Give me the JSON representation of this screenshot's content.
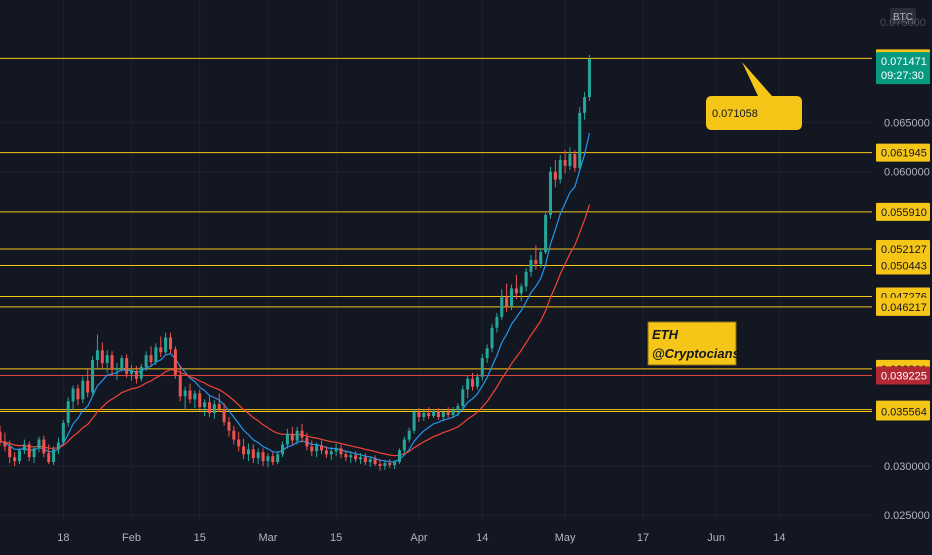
{
  "colors": {
    "background": "#131722",
    "grid": "#1e222d",
    "axis_text": "#b2b5be",
    "up": "#26a69a",
    "down": "#ef5350",
    "level_line": "#f5c518",
    "level_line_red": "#e0443f",
    "ema_fast": "#2196f3",
    "ema_slow": "#f44336",
    "price_tag_bg": "#089981",
    "red_tag_bg": "#b22833",
    "callout_bg": "#f5c518",
    "callout_text": "#131722"
  },
  "chart_data": {
    "type": "candlestick",
    "symbol": "ETH",
    "quote_currency": "BTC",
    "interval": "1D",
    "y_range": [
      0.0245,
      0.0775
    ],
    "x_ticks": [
      {
        "label": "18",
        "day": 18
      },
      {
        "label": "Feb",
        "day": 32
      },
      {
        "label": "15",
        "day": 46
      },
      {
        "label": "Mar",
        "day": 60
      },
      {
        "label": "15",
        "day": 74
      },
      {
        "label": "Apr",
        "day": 91
      },
      {
        "label": "14",
        "day": 104
      },
      {
        "label": "May",
        "day": 121
      },
      {
        "label": "17",
        "day": 137
      },
      {
        "label": "Jun",
        "day": 152
      },
      {
        "label": "14",
        "day": 165
      }
    ],
    "y_ticks": [
      0.065,
      0.06,
      0.03,
      0.025
    ],
    "x_domain": [
      5,
      184
    ],
    "candles_start_day": 5,
    "candles": [
      [
        0.0335,
        0.0341,
        0.0321,
        0.0325
      ],
      [
        0.0325,
        0.0334,
        0.0315,
        0.032
      ],
      [
        0.032,
        0.0326,
        0.0303,
        0.0309
      ],
      [
        0.0309,
        0.0314,
        0.03,
        0.0305
      ],
      [
        0.0305,
        0.0318,
        0.0302,
        0.0316
      ],
      [
        0.0316,
        0.0327,
        0.0312,
        0.0322
      ],
      [
        0.0322,
        0.0325,
        0.0305,
        0.0309
      ],
      [
        0.0309,
        0.032,
        0.0303,
        0.0318
      ],
      [
        0.0318,
        0.033,
        0.0314,
        0.0327
      ],
      [
        0.0327,
        0.0331,
        0.0309,
        0.0313
      ],
      [
        0.0313,
        0.0322,
        0.0302,
        0.0304
      ],
      [
        0.0304,
        0.032,
        0.0301,
        0.0317
      ],
      [
        0.0317,
        0.0329,
        0.0312,
        0.0324
      ],
      [
        0.0324,
        0.0347,
        0.0321,
        0.0344
      ],
      [
        0.0344,
        0.037,
        0.034,
        0.0366
      ],
      [
        0.0366,
        0.0382,
        0.0357,
        0.0379
      ],
      [
        0.0379,
        0.0383,
        0.0362,
        0.0368
      ],
      [
        0.0368,
        0.0391,
        0.0364,
        0.0387
      ],
      [
        0.0387,
        0.04,
        0.037,
        0.0375
      ],
      [
        0.0375,
        0.0412,
        0.0371,
        0.0408
      ],
      [
        0.0408,
        0.0434,
        0.04,
        0.0418
      ],
      [
        0.0418,
        0.0426,
        0.04,
        0.0405
      ],
      [
        0.0405,
        0.0418,
        0.0395,
        0.0413
      ],
      [
        0.0413,
        0.0417,
        0.0392,
        0.0398
      ],
      [
        0.0398,
        0.0405,
        0.0388,
        0.04
      ],
      [
        0.04,
        0.0413,
        0.0396,
        0.041
      ],
      [
        0.041,
        0.0414,
        0.039,
        0.0394
      ],
      [
        0.0394,
        0.0403,
        0.0387,
        0.0397
      ],
      [
        0.0397,
        0.0402,
        0.0384,
        0.0389
      ],
      [
        0.0389,
        0.0404,
        0.0386,
        0.0401
      ],
      [
        0.0401,
        0.0417,
        0.0397,
        0.0413
      ],
      [
        0.0413,
        0.0422,
        0.0402,
        0.0406
      ],
      [
        0.0406,
        0.0425,
        0.0403,
        0.0421
      ],
      [
        0.0421,
        0.0432,
        0.0411,
        0.0416
      ],
      [
        0.0416,
        0.0436,
        0.0414,
        0.0431
      ],
      [
        0.0431,
        0.0436,
        0.0415,
        0.0419
      ],
      [
        0.0419,
        0.0422,
        0.0389,
        0.0393
      ],
      [
        0.0393,
        0.0403,
        0.0366,
        0.0371
      ],
      [
        0.0371,
        0.0381,
        0.0357,
        0.0377
      ],
      [
        0.0377,
        0.0384,
        0.0364,
        0.0368
      ],
      [
        0.0368,
        0.0377,
        0.0359,
        0.0374
      ],
      [
        0.0374,
        0.0378,
        0.0356,
        0.036
      ],
      [
        0.036,
        0.0368,
        0.0351,
        0.0365
      ],
      [
        0.0365,
        0.0371,
        0.035,
        0.0354
      ],
      [
        0.0354,
        0.0367,
        0.0348,
        0.0363
      ],
      [
        0.0363,
        0.0374,
        0.0355,
        0.0358
      ],
      [
        0.0358,
        0.0364,
        0.0341,
        0.0345
      ],
      [
        0.0345,
        0.035,
        0.033,
        0.0336
      ],
      [
        0.0336,
        0.0341,
        0.0322,
        0.0327
      ],
      [
        0.0327,
        0.0335,
        0.0315,
        0.032
      ],
      [
        0.032,
        0.0328,
        0.0307,
        0.0312
      ],
      [
        0.0312,
        0.0323,
        0.0305,
        0.0317
      ],
      [
        0.0317,
        0.0322,
        0.0303,
        0.0308
      ],
      [
        0.0308,
        0.0318,
        0.0302,
        0.0314
      ],
      [
        0.0314,
        0.0318,
        0.03,
        0.0305
      ],
      [
        0.0305,
        0.0313,
        0.0299,
        0.031
      ],
      [
        0.031,
        0.0314,
        0.0301,
        0.0304
      ],
      [
        0.0304,
        0.0315,
        0.0302,
        0.0312
      ],
      [
        0.0312,
        0.0325,
        0.0309,
        0.0322
      ],
      [
        0.0322,
        0.0338,
        0.0318,
        0.0333
      ],
      [
        0.0333,
        0.034,
        0.0322,
        0.0326
      ],
      [
        0.0326,
        0.034,
        0.0322,
        0.0336
      ],
      [
        0.0336,
        0.0343,
        0.0324,
        0.0329
      ],
      [
        0.0329,
        0.0334,
        0.0316,
        0.032
      ],
      [
        0.032,
        0.0326,
        0.031,
        0.0315
      ],
      [
        0.0315,
        0.0324,
        0.0309,
        0.0321
      ],
      [
        0.0321,
        0.0326,
        0.0312,
        0.0316
      ],
      [
        0.0316,
        0.032,
        0.0308,
        0.0312
      ],
      [
        0.0312,
        0.0319,
        0.0306,
        0.0315
      ],
      [
        0.0315,
        0.0323,
        0.031,
        0.0318
      ],
      [
        0.0318,
        0.0322,
        0.0308,
        0.0312
      ],
      [
        0.0312,
        0.0316,
        0.0305,
        0.0309
      ],
      [
        0.0309,
        0.0315,
        0.0303,
        0.0311
      ],
      [
        0.0311,
        0.0315,
        0.0304,
        0.0307
      ],
      [
        0.0307,
        0.0313,
        0.0302,
        0.0309
      ],
      [
        0.0309,
        0.0313,
        0.0301,
        0.0304
      ],
      [
        0.0304,
        0.031,
        0.0299,
        0.0307
      ],
      [
        0.0307,
        0.0311,
        0.03,
        0.0302
      ],
      [
        0.0302,
        0.0307,
        0.0295,
        0.03
      ],
      [
        0.03,
        0.0306,
        0.0296,
        0.0303
      ],
      [
        0.0303,
        0.0307,
        0.0298,
        0.0301
      ],
      [
        0.0301,
        0.0306,
        0.0297,
        0.0304
      ],
      [
        0.0304,
        0.0318,
        0.0302,
        0.0316
      ],
      [
        0.0316,
        0.033,
        0.0313,
        0.0327
      ],
      [
        0.0327,
        0.0339,
        0.0324,
        0.0336
      ],
      [
        0.0336,
        0.0358,
        0.0333,
        0.0355
      ],
      [
        0.0355,
        0.0359,
        0.0345,
        0.035
      ],
      [
        0.035,
        0.0357,
        0.0346,
        0.0354
      ],
      [
        0.0354,
        0.036,
        0.0348,
        0.0351
      ],
      [
        0.0351,
        0.0358,
        0.0349,
        0.0356
      ],
      [
        0.0356,
        0.0359,
        0.0347,
        0.035
      ],
      [
        0.035,
        0.0357,
        0.0346,
        0.0355
      ],
      [
        0.0355,
        0.036,
        0.0349,
        0.0352
      ],
      [
        0.0352,
        0.036,
        0.0349,
        0.0357
      ],
      [
        0.0357,
        0.0364,
        0.0351,
        0.0361
      ],
      [
        0.0361,
        0.0382,
        0.0358,
        0.0378
      ],
      [
        0.0378,
        0.0392,
        0.0369,
        0.0389
      ],
      [
        0.0389,
        0.0395,
        0.0377,
        0.0381
      ],
      [
        0.0381,
        0.0394,
        0.0378,
        0.0391
      ],
      [
        0.0391,
        0.0414,
        0.0387,
        0.041
      ],
      [
        0.041,
        0.0424,
        0.0405,
        0.042
      ],
      [
        0.042,
        0.0445,
        0.0416,
        0.0441
      ],
      [
        0.0441,
        0.0456,
        0.0436,
        0.0452
      ],
      [
        0.0452,
        0.048,
        0.0449,
        0.0472
      ],
      [
        0.0472,
        0.0486,
        0.0457,
        0.0463
      ],
      [
        0.0463,
        0.0485,
        0.0459,
        0.0481
      ],
      [
        0.0481,
        0.0495,
        0.047,
        0.0476
      ],
      [
        0.0476,
        0.0486,
        0.0468,
        0.0483
      ],
      [
        0.0483,
        0.0502,
        0.0478,
        0.0498
      ],
      [
        0.0498,
        0.0515,
        0.0493,
        0.051
      ],
      [
        0.051,
        0.0525,
        0.05,
        0.0506
      ],
      [
        0.0506,
        0.0522,
        0.0502,
        0.0518
      ],
      [
        0.0518,
        0.056,
        0.0516,
        0.0556
      ],
      [
        0.0556,
        0.0605,
        0.0552,
        0.06
      ],
      [
        0.06,
        0.0612,
        0.0584,
        0.0592
      ],
      [
        0.0592,
        0.0617,
        0.0588,
        0.0612
      ],
      [
        0.0612,
        0.0622,
        0.0598,
        0.0606
      ],
      [
        0.0606,
        0.0625,
        0.0602,
        0.0618
      ],
      [
        0.0618,
        0.0622,
        0.06,
        0.0604
      ],
      [
        0.0604,
        0.0666,
        0.0602,
        0.066
      ],
      [
        0.066,
        0.0681,
        0.0653,
        0.0676
      ],
      [
        0.0676,
        0.0719,
        0.0672,
        0.0715
      ]
    ],
    "levels": [
      {
        "price": 0.071554,
        "label": "0.071554",
        "style": "yellow"
      },
      {
        "price": 0.061945,
        "label": "0.061945",
        "style": "yellow"
      },
      {
        "price": 0.05591,
        "label": "0.055910",
        "style": "yellow"
      },
      {
        "price": 0.052127,
        "label": "0.052127",
        "style": "yellow"
      },
      {
        "price": 0.050443,
        "label": "0.050443",
        "style": "yellow"
      },
      {
        "price": 0.047276,
        "label": "0.047276",
        "style": "yellow"
      },
      {
        "price": 0.046217,
        "label": "0.046217",
        "style": "yellow"
      },
      {
        "price": 0.039901,
        "label": "0.039901",
        "style": "yellow"
      },
      {
        "price": 0.039225,
        "label": "0.039225",
        "style": "red"
      },
      {
        "price": 0.035753,
        "label": "0.035753",
        "style": "yellow"
      },
      {
        "price": 0.035564,
        "label": "0.035564",
        "style": "yellow"
      }
    ],
    "current_price": {
      "value": 0.071471,
      "label": "0.071471",
      "countdown": "09:27:30"
    },
    "callout": {
      "text": "0.071058"
    },
    "watermark": {
      "line1": "ETH",
      "line2": "@Cryptocians"
    },
    "partial_top_tick": "0.075000"
  }
}
